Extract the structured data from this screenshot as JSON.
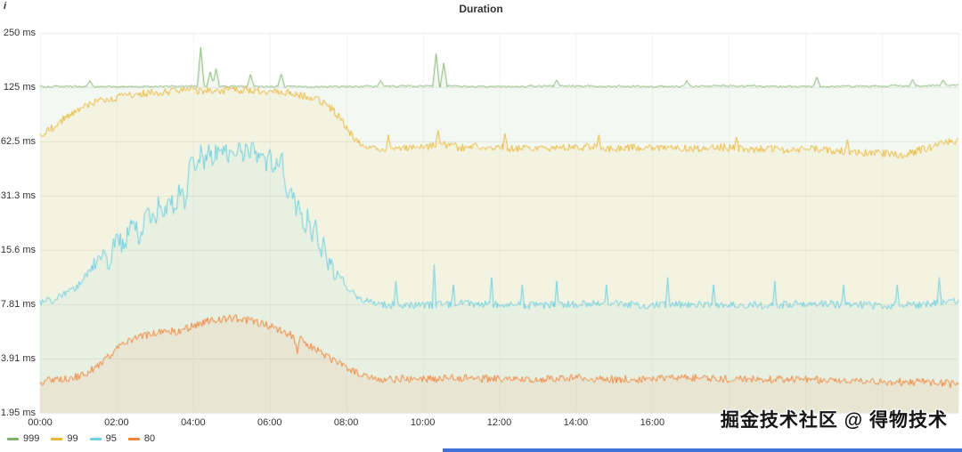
{
  "panel": {
    "title": "Duration",
    "info_icon": "i"
  },
  "watermark": {
    "text": "掘金技术社区 @ 得物技术"
  },
  "chart_data": {
    "type": "line",
    "title": "Duration",
    "grid": true,
    "legend_position": "bottom-left",
    "x_axis": {
      "unit": "time",
      "range_hours": [
        0,
        24
      ],
      "ticks": [
        {
          "hour": 0,
          "label": "00:00"
        },
        {
          "hour": 2,
          "label": "02:00"
        },
        {
          "hour": 4,
          "label": "04:00"
        },
        {
          "hour": 6,
          "label": "06:00"
        },
        {
          "hour": 8,
          "label": "08:00"
        },
        {
          "hour": 10,
          "label": "10:00"
        },
        {
          "hour": 12,
          "label": "12:00"
        },
        {
          "hour": 14,
          "label": "14:00"
        },
        {
          "hour": 16,
          "label": "16:00"
        }
      ]
    },
    "y_axis": {
      "scale": "log2",
      "unit": "ms",
      "min": 1.95,
      "max": 250,
      "ticks": [
        {
          "value": 250,
          "label": "250 ms"
        },
        {
          "value": 125,
          "label": "125 ms"
        },
        {
          "value": 62.5,
          "label": "62.5 ms"
        },
        {
          "value": 31.3,
          "label": "31.3 ms"
        },
        {
          "value": 15.6,
          "label": "15.6 ms"
        },
        {
          "value": 7.81,
          "label": "7.81 ms"
        },
        {
          "value": 3.91,
          "label": "3.91 ms"
        },
        {
          "value": 1.95,
          "label": "1.95 ms"
        }
      ]
    },
    "series": [
      {
        "name": "999",
        "color": "#7EB26D",
        "fill_opacity": 0.09,
        "noise": 0.012,
        "spike_width": 0.09,
        "points": [
          [
            0,
            126
          ],
          [
            2,
            126
          ],
          [
            4,
            127
          ],
          [
            6,
            126
          ],
          [
            8,
            126
          ],
          [
            10,
            127
          ],
          [
            12,
            126
          ],
          [
            14,
            127
          ],
          [
            16,
            126
          ],
          [
            18,
            127
          ],
          [
            20,
            126
          ],
          [
            22,
            127
          ],
          [
            24,
            128
          ]
        ],
        "spikes": [
          [
            1.3,
            136
          ],
          [
            4.2,
            208
          ],
          [
            4.45,
            152
          ],
          [
            4.6,
            158
          ],
          [
            5.5,
            147
          ],
          [
            6.3,
            148
          ],
          [
            8.9,
            136
          ],
          [
            10.35,
            192
          ],
          [
            10.55,
            170
          ],
          [
            13.5,
            137
          ],
          [
            16.9,
            136
          ],
          [
            20.3,
            142
          ],
          [
            22.8,
            138
          ],
          [
            23.6,
            137
          ]
        ]
      },
      {
        "name": "99",
        "color": "#EAB839",
        "fill_opacity": 0.09,
        "noise": 0.05,
        "spike_width": 0.06,
        "points": [
          [
            0,
            66
          ],
          [
            0.3,
            74
          ],
          [
            0.7,
            86
          ],
          [
            1,
            95
          ],
          [
            1.5,
            104
          ],
          [
            2,
            110
          ],
          [
            2.5,
            114
          ],
          [
            3,
            117
          ],
          [
            3.5,
            119
          ],
          [
            4,
            120
          ],
          [
            4.5,
            121
          ],
          [
            5,
            120
          ],
          [
            5.5,
            121
          ],
          [
            6,
            119
          ],
          [
            6.5,
            116
          ],
          [
            7,
            111
          ],
          [
            7.3,
            105
          ],
          [
            7.6,
            96
          ],
          [
            7.9,
            82
          ],
          [
            8.1,
            70
          ],
          [
            8.3,
            62
          ],
          [
            8.5,
            58
          ],
          [
            9,
            57
          ],
          [
            9.5,
            58
          ],
          [
            10,
            58
          ],
          [
            10.5,
            60
          ],
          [
            11,
            58
          ],
          [
            11.5,
            59
          ],
          [
            12,
            58
          ],
          [
            12.5,
            57
          ],
          [
            13,
            58
          ],
          [
            13.5,
            57
          ],
          [
            14,
            58
          ],
          [
            14.5,
            59
          ],
          [
            15,
            57
          ],
          [
            15.5,
            58
          ],
          [
            16,
            58
          ],
          [
            16.5,
            57
          ],
          [
            17,
            57
          ],
          [
            17.5,
            58
          ],
          [
            18,
            58
          ],
          [
            18.5,
            56
          ],
          [
            19,
            57
          ],
          [
            19.5,
            56
          ],
          [
            20,
            57
          ],
          [
            20.5,
            56
          ],
          [
            21,
            55
          ],
          [
            21.5,
            54
          ],
          [
            22,
            54
          ],
          [
            22.5,
            52
          ],
          [
            23,
            56
          ],
          [
            23.5,
            60
          ],
          [
            24,
            64
          ]
        ],
        "spikes": [
          [
            9.1,
            68
          ],
          [
            10.4,
            72
          ],
          [
            12.15,
            69
          ],
          [
            14.6,
            68
          ],
          [
            18.2,
            66
          ],
          [
            21.1,
            64
          ]
        ]
      },
      {
        "name": "95",
        "color": "#6ED0E0",
        "fill_opacity": 0.09,
        "noise": 0.05,
        "spike_width": 0.05,
        "noise_regions": [
          {
            "from": 1.4,
            "to": 7.7,
            "amp": 0.12
          }
        ],
        "points": [
          [
            0,
            8
          ],
          [
            0.3,
            8.2
          ],
          [
            0.6,
            8.8
          ],
          [
            1,
            10
          ],
          [
            1.3,
            12
          ],
          [
            1.6,
            14.5
          ],
          [
            1.8,
            13
          ],
          [
            2,
            19
          ],
          [
            2.2,
            16
          ],
          [
            2.4,
            24
          ],
          [
            2.6,
            18
          ],
          [
            2.8,
            27
          ],
          [
            3,
            21
          ],
          [
            3.1,
            30
          ],
          [
            3.25,
            25
          ],
          [
            3.4,
            32
          ],
          [
            3.5,
            26
          ],
          [
            3.65,
            34
          ],
          [
            3.8,
            29
          ],
          [
            3.9,
            44
          ],
          [
            4,
            50
          ],
          [
            4.1,
            43
          ],
          [
            4.2,
            54
          ],
          [
            4.3,
            47
          ],
          [
            4.4,
            57
          ],
          [
            4.5,
            50
          ],
          [
            4.6,
            56
          ],
          [
            4.7,
            51
          ],
          [
            4.8,
            59
          ],
          [
            4.9,
            53
          ],
          [
            5,
            57
          ],
          [
            5.1,
            49
          ],
          [
            5.2,
            57
          ],
          [
            5.3,
            51
          ],
          [
            5.4,
            59
          ],
          [
            5.5,
            54
          ],
          [
            5.6,
            57
          ],
          [
            5.7,
            49
          ],
          [
            5.8,
            53
          ],
          [
            5.9,
            47
          ],
          [
            6,
            51
          ],
          [
            6.1,
            43
          ],
          [
            6.2,
            49
          ],
          [
            6.3,
            54
          ],
          [
            6.4,
            39
          ],
          [
            6.5,
            29
          ],
          [
            6.6,
            34
          ],
          [
            6.7,
            24
          ],
          [
            6.8,
            29
          ],
          [
            6.9,
            19
          ],
          [
            7,
            25
          ],
          [
            7.1,
            17
          ],
          [
            7.2,
            21
          ],
          [
            7.3,
            13.5
          ],
          [
            7.4,
            17
          ],
          [
            7.5,
            12.5
          ],
          [
            7.6,
            14.5
          ],
          [
            7.7,
            11
          ],
          [
            7.8,
            12
          ],
          [
            8,
            10
          ],
          [
            8.3,
            8.6
          ],
          [
            8.6,
            8
          ],
          [
            9,
            7.8
          ],
          [
            10,
            7.7
          ],
          [
            11,
            7.9
          ],
          [
            12,
            7.8
          ],
          [
            13,
            7.7
          ],
          [
            14,
            7.8
          ],
          [
            15,
            7.9
          ],
          [
            16,
            7.7
          ],
          [
            17,
            7.8
          ],
          [
            18,
            7.8
          ],
          [
            19,
            7.7
          ],
          [
            20,
            7.9
          ],
          [
            21,
            7.8
          ],
          [
            22,
            7.7
          ],
          [
            23,
            7.8
          ],
          [
            24,
            8.3
          ]
        ],
        "spikes": [
          [
            9.3,
            10.5
          ],
          [
            10.3,
            13
          ],
          [
            10.8,
            10
          ],
          [
            11.8,
            11
          ],
          [
            12.6,
            10
          ],
          [
            13.5,
            10.5
          ],
          [
            14.8,
            10
          ],
          [
            16.4,
            11
          ],
          [
            17.6,
            10
          ],
          [
            19.2,
            10.5
          ],
          [
            21,
            10
          ],
          [
            22.4,
            10
          ],
          [
            23.5,
            11
          ]
        ]
      },
      {
        "name": "80",
        "color": "#EF843C",
        "fill_opacity": 0.09,
        "noise": 0.05,
        "spike_width": 0.05,
        "points": [
          [
            0,
            2.9
          ],
          [
            0.5,
            3.0
          ],
          [
            1,
            3.1
          ],
          [
            1.3,
            3.3
          ],
          [
            1.6,
            3.7
          ],
          [
            2,
            4.4
          ],
          [
            2.3,
            4.9
          ],
          [
            2.6,
            5.2
          ],
          [
            3,
            5.4
          ],
          [
            3.3,
            5.6
          ],
          [
            3.6,
            5.5
          ],
          [
            3.9,
            5.8
          ],
          [
            4.2,
            6.1
          ],
          [
            4.5,
            6.4
          ],
          [
            4.8,
            6.5
          ],
          [
            5.1,
            6.5
          ],
          [
            5.4,
            6.4
          ],
          [
            5.7,
            6.2
          ],
          [
            6,
            5.9
          ],
          [
            6.3,
            5.6
          ],
          [
            6.55,
            5.3
          ],
          [
            6.65,
            5.1
          ],
          [
            6.72,
            4.1
          ],
          [
            6.8,
            5.0
          ],
          [
            7,
            4.7
          ],
          [
            7.3,
            4.3
          ],
          [
            7.6,
            3.9
          ],
          [
            8,
            3.5
          ],
          [
            8.3,
            3.2
          ],
          [
            8.6,
            3.05
          ],
          [
            9,
            3.0
          ],
          [
            10,
            3.0
          ],
          [
            11,
            3.05
          ],
          [
            12,
            3.0
          ],
          [
            13,
            3.0
          ],
          [
            14,
            3.05
          ],
          [
            15,
            3.0
          ],
          [
            16,
            3.0
          ],
          [
            17,
            3.05
          ],
          [
            18,
            3.0
          ],
          [
            19,
            3.0
          ],
          [
            20,
            3.0
          ],
          [
            21,
            2.95
          ],
          [
            22,
            2.9
          ],
          [
            23,
            2.9
          ],
          [
            24,
            2.8
          ]
        ],
        "spikes": []
      }
    ]
  }
}
